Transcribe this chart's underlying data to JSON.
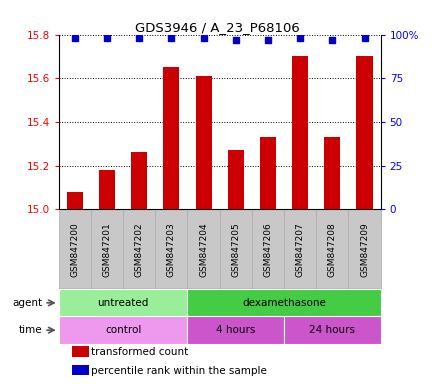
{
  "title": "GDS3946 / A_23_P68106",
  "samples": [
    "GSM847200",
    "GSM847201",
    "GSM847202",
    "GSM847203",
    "GSM847204",
    "GSM847205",
    "GSM847206",
    "GSM847207",
    "GSM847208",
    "GSM847209"
  ],
  "bar_values": [
    15.08,
    15.18,
    15.26,
    15.65,
    15.61,
    15.27,
    15.33,
    15.7,
    15.33,
    15.7
  ],
  "percentile_values": [
    98,
    98,
    98,
    98,
    98,
    97,
    97,
    98,
    97,
    98
  ],
  "ylim_left": [
    15.0,
    15.8
  ],
  "ylim_right": [
    0,
    100
  ],
  "yticks_left": [
    15.0,
    15.2,
    15.4,
    15.6,
    15.8
  ],
  "yticks_right": [
    0,
    25,
    50,
    75,
    100
  ],
  "ytick_right_labels": [
    "0",
    "25",
    "50",
    "75",
    "100%"
  ],
  "bar_color": "#cc0000",
  "dot_color": "#0000cc",
  "agent_labels": [
    {
      "text": "untreated",
      "start": 0,
      "end": 4,
      "color": "#99ee99"
    },
    {
      "text": "dexamethasone",
      "start": 4,
      "end": 10,
      "color": "#44cc44"
    }
  ],
  "time_labels": [
    {
      "text": "control",
      "start": 0,
      "end": 4,
      "color": "#ee99ee"
    },
    {
      "text": "4 hours",
      "start": 4,
      "end": 7,
      "color": "#cc55cc"
    },
    {
      "text": "24 hours",
      "start": 7,
      "end": 10,
      "color": "#cc55cc"
    }
  ],
  "legend_items": [
    {
      "color": "#cc0000",
      "label": "transformed count"
    },
    {
      "color": "#0000cc",
      "label": "percentile rank within the sample"
    }
  ],
  "tick_bg_color": "#c8c8c8",
  "tick_border_color": "#aaaaaa"
}
